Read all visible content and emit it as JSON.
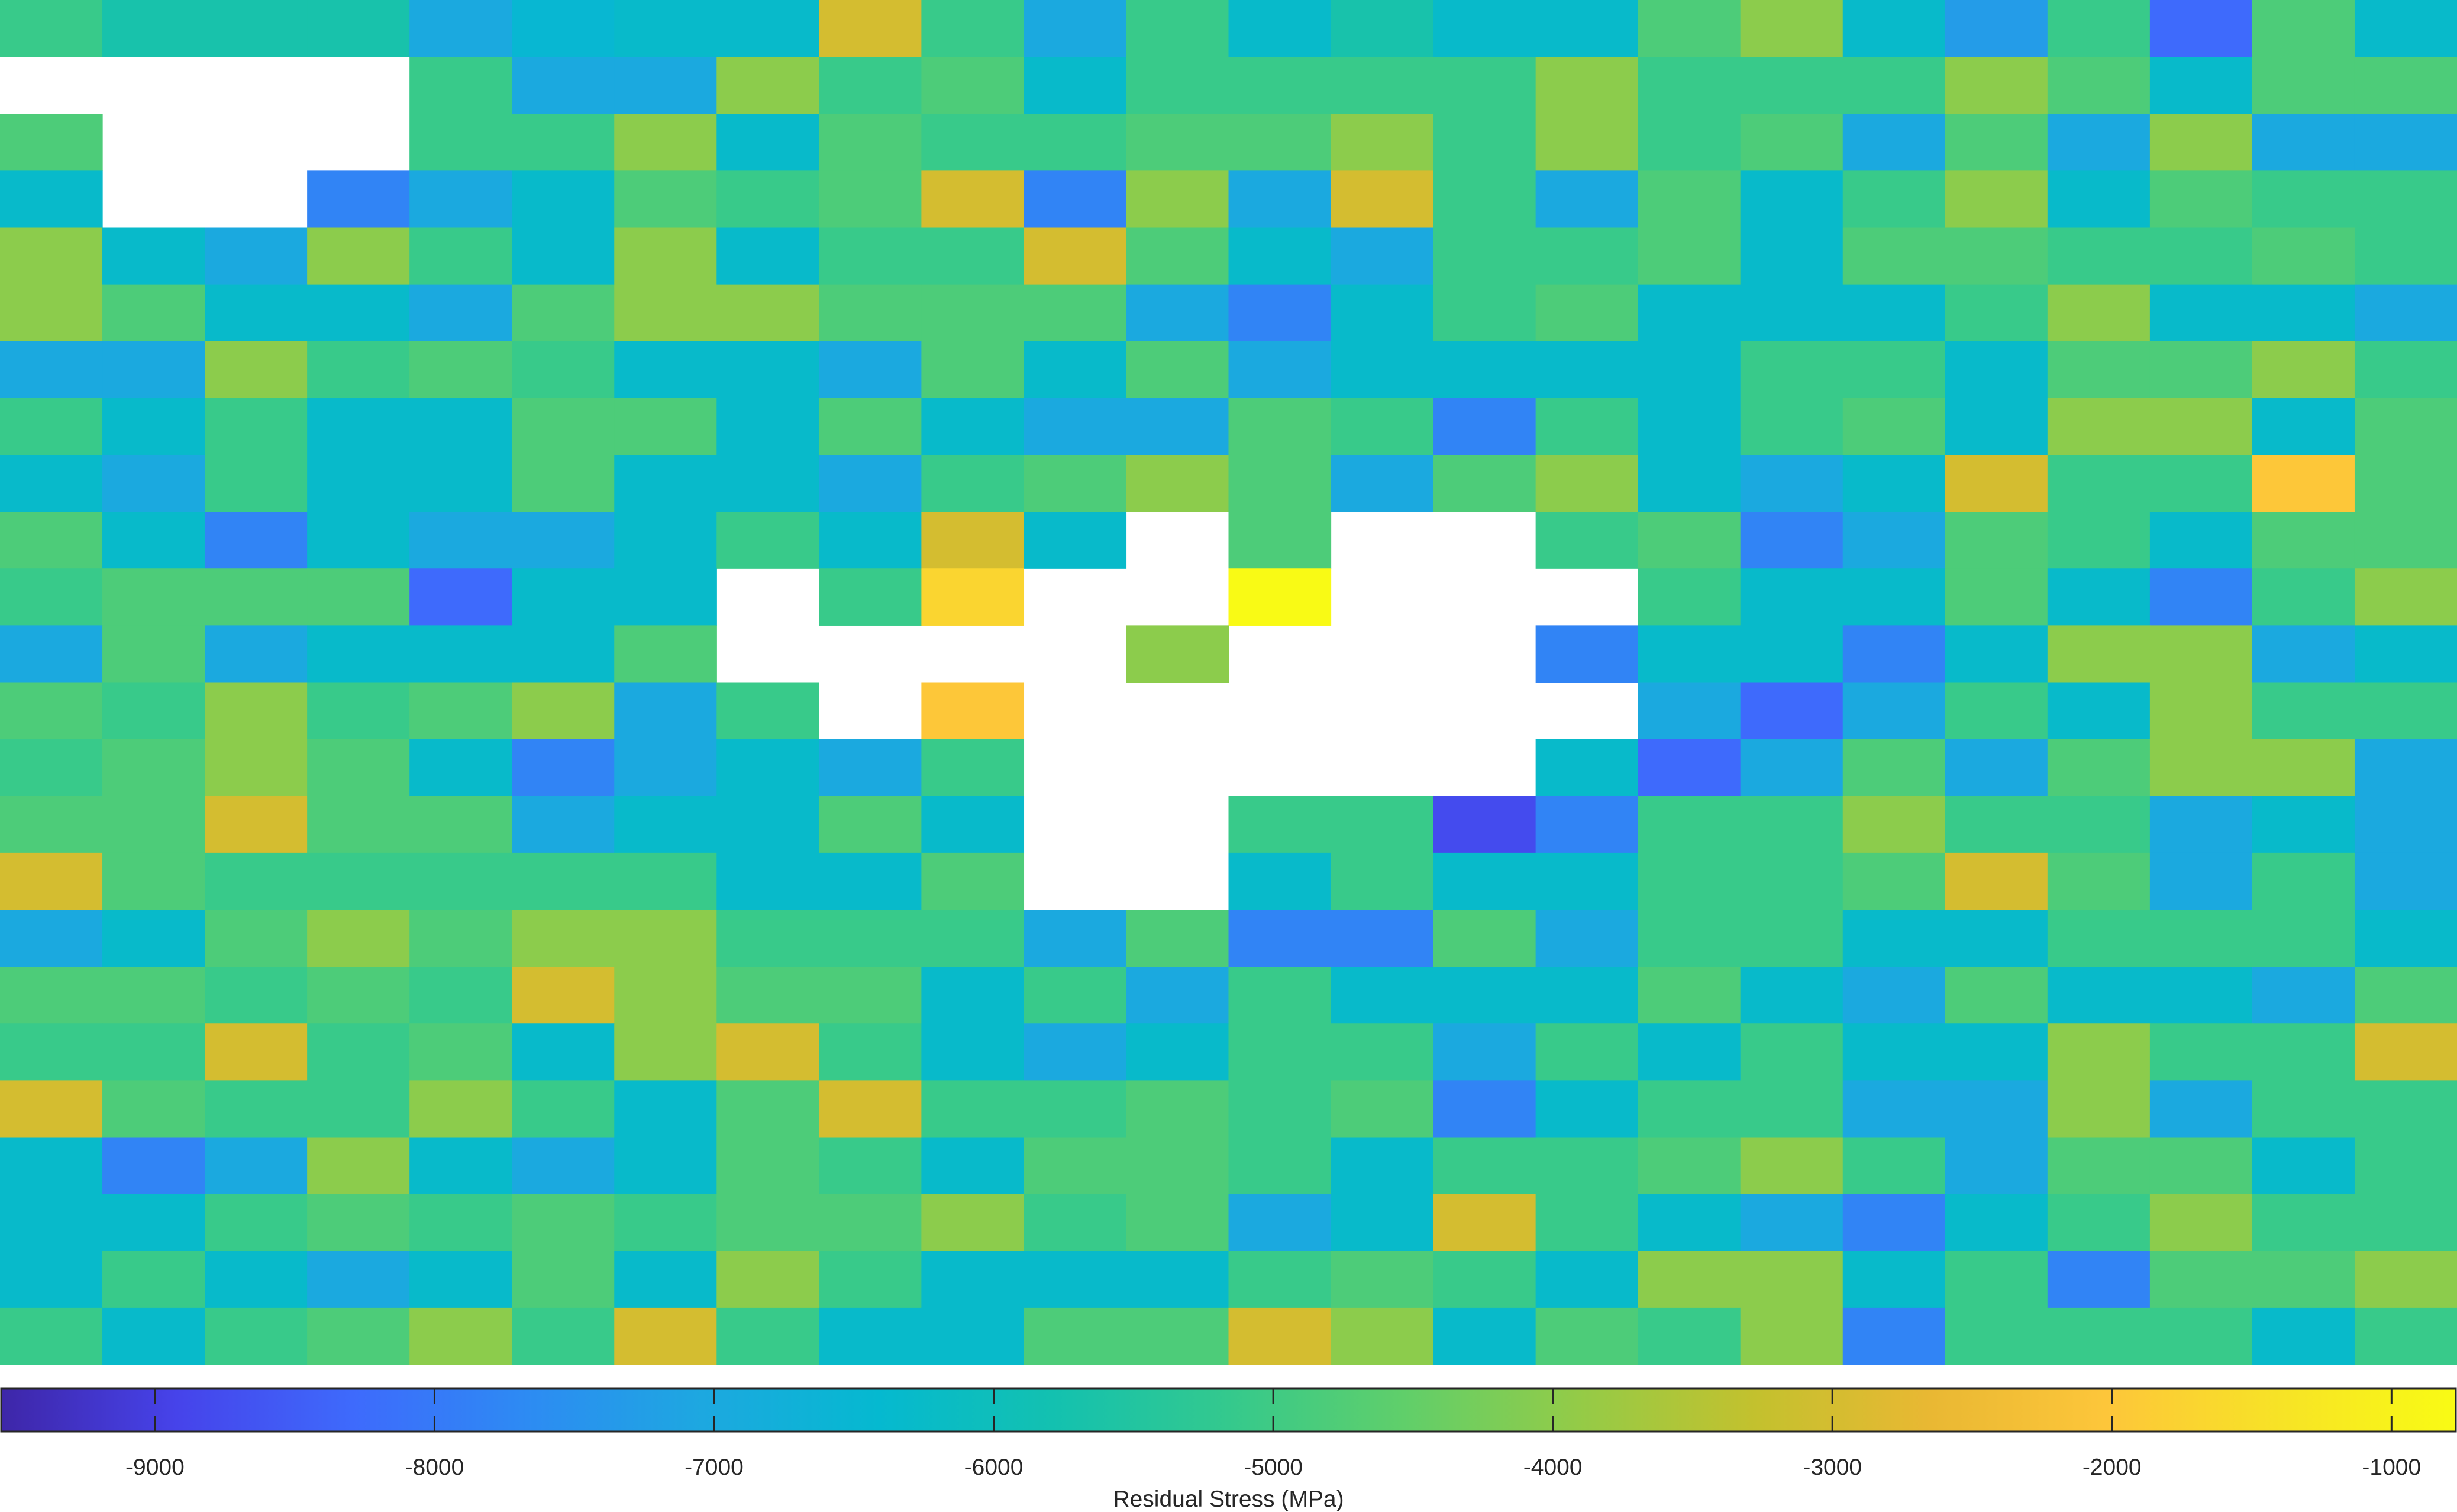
{
  "chart_data": {
    "type": "heatmap",
    "title": "",
    "grid": false,
    "colorbar": {
      "placement": "bottom",
      "label": "Residual Stress (MPa)",
      "range": [
        -9550,
        -770
      ],
      "ticks": [
        -9000,
        -8000,
        -7000,
        -6000,
        -5000,
        -4000,
        -3000,
        -2000,
        -1000
      ],
      "tick_labels": [
        "-9000",
        "-8000",
        "-7000",
        "-6000",
        "-5000",
        "-4000",
        "-3000",
        "-2000",
        "-1000"
      ],
      "colormap": [
        "#3e26a8",
        "#4643ea",
        "#3e6afc",
        "#2d8bf3",
        "#1da8e0",
        "#05b9d0",
        "#13c1b0",
        "#34c98d",
        "#60cf6a",
        "#94cb47",
        "#c3c12e",
        "#e9b833",
        "#fdc63a",
        "#f7e326",
        "#f9fb14"
      ]
    },
    "rows": 24,
    "cols": 24,
    "missing_value": null,
    "values": [
      [
        -5100,
        -5700,
        -5700,
        -5700,
        -7000,
        -6500,
        -6300,
        -6300,
        -3000,
        -5100,
        -7000,
        -5100,
        -6300,
        -5700,
        -6300,
        -6300,
        -4800,
        -4000,
        -6300,
        -7300,
        -5100,
        -8300,
        -4800,
        -6300
      ],
      [
        null,
        null,
        null,
        null,
        -5100,
        -7000,
        -7000,
        -4000,
        -5100,
        -4800,
        -6300,
        -5100,
        -5100,
        -5100,
        -5100,
        -4000,
        -5100,
        -5100,
        -5100,
        -4000,
        -4800,
        -6300,
        -4800,
        -4800
      ],
      [
        -4800,
        null,
        null,
        null,
        -5100,
        -5100,
        -4000,
        -6300,
        -4800,
        -5100,
        -5100,
        -4800,
        -4800,
        -4000,
        -5100,
        -4000,
        -5100,
        -4800,
        -7000,
        -4800,
        -7000,
        -4000,
        -7000,
        -7000
      ],
      [
        -6300,
        null,
        null,
        -7800,
        -7000,
        -6300,
        -4800,
        -5100,
        -4800,
        -3000,
        -7800,
        -4000,
        -7000,
        -3000,
        -5100,
        -7000,
        -4800,
        -6300,
        -5100,
        -4000,
        -6300,
        -4800,
        -5100,
        -5100
      ],
      [
        -4000,
        -6300,
        -7000,
        -4000,
        -5100,
        -6300,
        -4000,
        -6300,
        -5100,
        -5100,
        -3000,
        -4800,
        -6300,
        -7000,
        -5100,
        -5100,
        -4800,
        -6300,
        -4800,
        -4800,
        -5100,
        -5100,
        -4800,
        -5100
      ],
      [
        -4000,
        -4800,
        -6300,
        -6300,
        -7000,
        -4800,
        -4000,
        -4000,
        -4800,
        -4800,
        -4800,
        -7000,
        -7800,
        -6300,
        -5100,
        -4800,
        -6300,
        -6300,
        -6300,
        -5100,
        -4000,
        -6300,
        -6300,
        -7000
      ],
      [
        -7000,
        -7000,
        -4000,
        -5100,
        -4800,
        -5100,
        -6300,
        -6300,
        -7000,
        -4800,
        -6300,
        -4800,
        -7000,
        -6300,
        -6300,
        -6300,
        -6300,
        -5100,
        -5100,
        -6300,
        -4800,
        -4800,
        -4000,
        -5100
      ],
      [
        -5100,
        -6300,
        -5100,
        -6300,
        -6300,
        -4800,
        -4800,
        -6300,
        -4800,
        -6300,
        -7000,
        -7000,
        -4800,
        -5100,
        -7800,
        -5100,
        -6300,
        -5100,
        -4800,
        -6300,
        -4000,
        -4000,
        -6300,
        -4800
      ],
      [
        -6300,
        -7000,
        -5100,
        -6300,
        -6300,
        -4800,
        -6300,
        -6300,
        -7000,
        -5100,
        -4800,
        -4000,
        -4800,
        -7000,
        -4800,
        -4000,
        -6300,
        -7000,
        -6300,
        -3000,
        -5100,
        -5100,
        -2000,
        -4800
      ],
      [
        -4800,
        -6300,
        -7800,
        -6300,
        -7000,
        -7000,
        -6300,
        -5100,
        -6300,
        -3000,
        -6300,
        null,
        -4800,
        null,
        null,
        -5100,
        -4800,
        -7800,
        -7000,
        -4800,
        -5100,
        -6300,
        -4800,
        -4800
      ],
      [
        -5100,
        -4800,
        -4800,
        -4800,
        -8300,
        -6300,
        -6300,
        null,
        -5100,
        -1700,
        null,
        null,
        -800,
        null,
        null,
        null,
        -5100,
        -6300,
        -6300,
        -4800,
        -6300,
        -7800,
        -5100,
        -4000
      ],
      [
        -7000,
        -4800,
        -7000,
        -6300,
        -6300,
        -6300,
        -4800,
        null,
        null,
        null,
        null,
        -4000,
        null,
        null,
        null,
        -7800,
        -6300,
        -6300,
        -7800,
        -6300,
        -4000,
        -4000,
        -7000,
        -6300
      ],
      [
        -4800,
        -5100,
        -4000,
        -5100,
        -4800,
        -4000,
        -7000,
        -5100,
        null,
        -2000,
        null,
        null,
        null,
        null,
        null,
        null,
        -7000,
        -8300,
        -7000,
        -5100,
        -6300,
        -4000,
        -5100,
        -5100
      ],
      [
        -5100,
        -4800,
        -4000,
        -4800,
        -6300,
        -7800,
        -7000,
        -6300,
        -7000,
        -5100,
        null,
        null,
        null,
        null,
        null,
        -6300,
        -8300,
        -7000,
        -4800,
        -7000,
        -4800,
        -4000,
        -4000,
        -7000
      ],
      [
        -4800,
        -4800,
        -3000,
        -4800,
        -4800,
        -7000,
        -6300,
        -6300,
        -4800,
        -6300,
        null,
        null,
        -5100,
        -5100,
        -8800,
        -7800,
        -5100,
        -5100,
        -4000,
        -5100,
        -5100,
        -7000,
        -6300,
        -7000
      ],
      [
        -3000,
        -4800,
        -5100,
        -5100,
        -5100,
        -5100,
        -5100,
        -6300,
        -6300,
        -4800,
        null,
        null,
        -6300,
        -5100,
        -6300,
        -6300,
        -5100,
        -5100,
        -4800,
        -3000,
        -4800,
        -7000,
        -5100,
        -7000
      ],
      [
        -7000,
        -6300,
        -4800,
        -4000,
        -4800,
        -4000,
        -4000,
        -5100,
        -5100,
        -5100,
        -7000,
        -4800,
        -7800,
        -7800,
        -4800,
        -7000,
        -5100,
        -5100,
        -6300,
        -6300,
        -5100,
        -5100,
        -5100,
        -6300
      ],
      [
        -4800,
        -4800,
        -5100,
        -4800,
        -5100,
        -3000,
        -4000,
        -4800,
        -4800,
        -6300,
        -5100,
        -7000,
        -5100,
        -6300,
        -6300,
        -6300,
        -4800,
        -6300,
        -7000,
        -4800,
        -6300,
        -6300,
        -7000,
        -4800
      ],
      [
        -5100,
        -5100,
        -3000,
        -5100,
        -4800,
        -6300,
        -4000,
        -3000,
        -5100,
        -6300,
        -7000,
        -6300,
        -5100,
        -5100,
        -7000,
        -5100,
        -6300,
        -5100,
        -6300,
        -6300,
        -4000,
        -5100,
        -5100,
        -3000
      ],
      [
        -3000,
        -4800,
        -5100,
        -5100,
        -4000,
        -5100,
        -6300,
        -4800,
        -3000,
        -5100,
        -5100,
        -4800,
        -5100,
        -4800,
        -7800,
        -6300,
        -5100,
        -5100,
        -7000,
        -7000,
        -4000,
        -7000,
        -5100,
        -5100
      ],
      [
        -6300,
        -7800,
        -7000,
        -4000,
        -6300,
        -7000,
        -6300,
        -4800,
        -5100,
        -6300,
        -4800,
        -4800,
        -5100,
        -6300,
        -5100,
        -5100,
        -4800,
        -4000,
        -5100,
        -7000,
        -4800,
        -4800,
        -6300,
        -5100
      ],
      [
        -6300,
        -6300,
        -5100,
        -4800,
        -5100,
        -4800,
        -5100,
        -4800,
        -4800,
        -4000,
        -5100,
        -4800,
        -7000,
        -6300,
        -3000,
        -5100,
        -6300,
        -7000,
        -7800,
        -6300,
        -5100,
        -4000,
        -5100,
        -5100
      ],
      [
        -6300,
        -5100,
        -6300,
        -7000,
        -6300,
        -4800,
        -6300,
        -4000,
        -5100,
        -6300,
        -6300,
        -6300,
        -5100,
        -4800,
        -5100,
        -6300,
        -4000,
        -4000,
        -6300,
        -5100,
        -7800,
        -4800,
        -4800,
        -4000
      ],
      [
        -5100,
        -6300,
        -5100,
        -4800,
        -4000,
        -5100,
        -3000,
        -5100,
        -6300,
        -6300,
        -4800,
        -4800,
        -3000,
        -4000,
        -6300,
        -4800,
        -5100,
        -4000,
        -7800,
        -5100,
        -5100,
        -5100,
        -6300,
        -5100
      ]
    ]
  }
}
